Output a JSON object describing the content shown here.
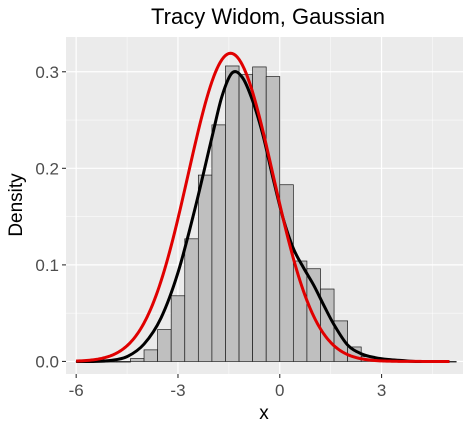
{
  "chart_data": {
    "type": "bar",
    "title": "Tracy Widom, Gaussian",
    "xlabel": "x",
    "ylabel": "Density",
    "xlim": [
      -6.3,
      5.4
    ],
    "ylim": [
      -0.013,
      0.336
    ],
    "x_ticks": [
      -6,
      -3,
      0,
      3
    ],
    "y_ticks": [
      0.0,
      0.1,
      0.2,
      0.3
    ],
    "x_tick_labels": [
      "-6",
      "-3",
      "0",
      "3"
    ],
    "y_tick_labels": [
      "0.0",
      "0.1",
      "0.2",
      "0.3"
    ],
    "grid": true,
    "legend": "none",
    "colors": {
      "panel": "#ebebeb",
      "grid": "#ffffff",
      "bar_fill": "#bfbfbf",
      "bar_stroke": "#1a1a1a",
      "density_curve": "#000000",
      "normal_curve": "#e00000"
    },
    "histogram": {
      "bin_width": 0.4,
      "bin_starts": [
        -6.0,
        -5.6,
        -5.2,
        -4.8,
        -4.4,
        -4.0,
        -3.6,
        -3.2,
        -2.8,
        -2.4,
        -2.0,
        -1.6,
        -1.2,
        -0.8,
        -0.4,
        0.0,
        0.4,
        0.8,
        1.2,
        1.6,
        2.0,
        2.4,
        2.8,
        3.2,
        3.6,
        4.0,
        4.4,
        4.8
      ],
      "density": [
        0.0,
        0.0,
        0.0,
        0.0,
        0.003,
        0.012,
        0.033,
        0.068,
        0.127,
        0.193,
        0.245,
        0.306,
        0.297,
        0.305,
        0.295,
        0.183,
        0.104,
        0.096,
        0.075,
        0.042,
        0.015,
        0.005,
        0.003,
        0.002,
        0.0,
        0.0,
        0.0,
        0.0
      ]
    },
    "series": [
      {
        "curve": "empirical density",
        "x": [
          -6.0,
          -5.5,
          -5.0,
          -4.5,
          -4.0,
          -3.5,
          -3.0,
          -2.5,
          -2.0,
          -1.7,
          -1.4,
          -1.1,
          -0.8,
          -0.5,
          -0.2,
          0.1,
          0.4,
          0.7,
          1.0,
          1.3,
          1.6,
          2.0,
          2.4,
          2.8,
          3.2,
          3.6,
          4.0,
          4.5,
          5.0
        ],
        "y": [
          0.0,
          0.0,
          0.001,
          0.005,
          0.018,
          0.045,
          0.092,
          0.158,
          0.232,
          0.275,
          0.299,
          0.294,
          0.27,
          0.235,
          0.19,
          0.148,
          0.117,
          0.097,
          0.079,
          0.058,
          0.038,
          0.017,
          0.008,
          0.004,
          0.002,
          0.001,
          0.0,
          0.0,
          0.0
        ]
      },
      {
        "curve": "gaussian",
        "mean": -1.45,
        "sd": 1.25,
        "x_range": [
          -6.0,
          5.0
        ]
      }
    ]
  }
}
